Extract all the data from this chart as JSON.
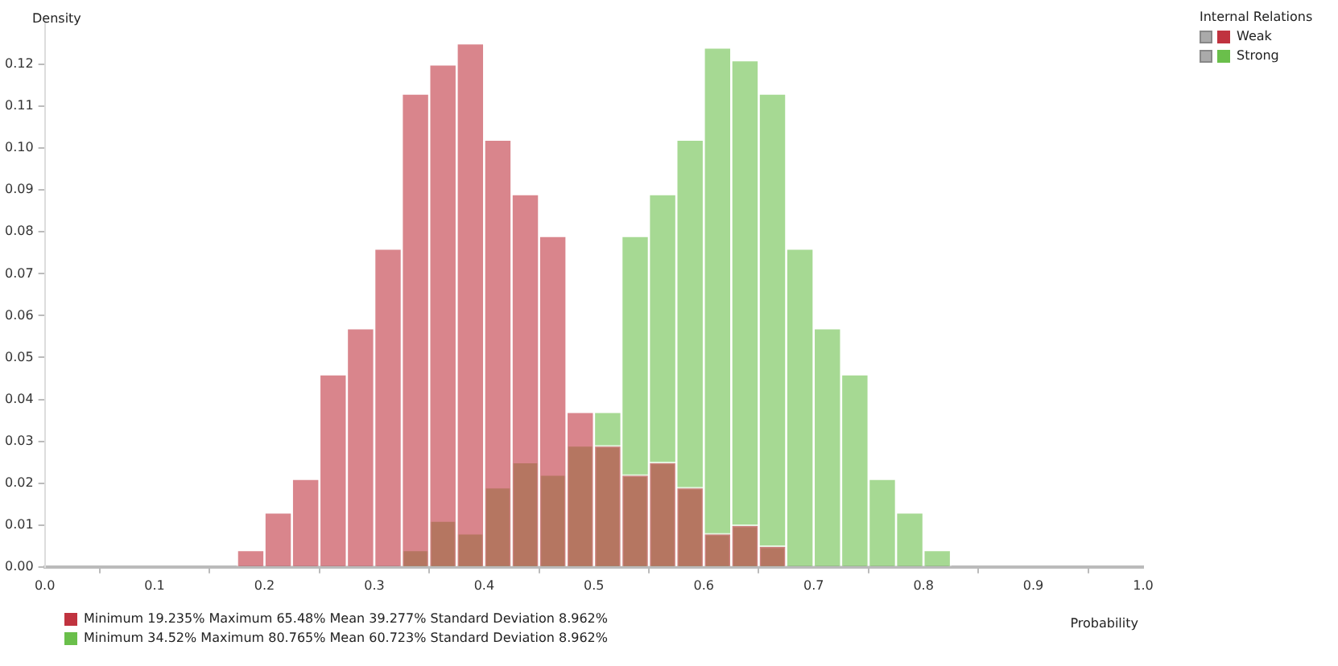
{
  "chart_data": {
    "type": "histogram",
    "xlabel": "Probability",
    "ylabel": "Density",
    "legend_title": "Internal Relations",
    "legend": "top right",
    "grid": false,
    "bins": [
      0.175,
      0.2,
      0.225,
      0.25,
      0.275,
      0.3,
      0.325,
      0.35,
      0.375,
      0.4,
      0.425,
      0.45,
      0.475,
      0.5,
      0.525,
      0.55,
      0.575,
      0.6,
      0.625,
      0.65,
      0.675,
      0.7,
      0.725,
      0.75,
      0.775,
      0.8,
      0.825
    ],
    "series": [
      {
        "name": "Weak",
        "color": "#c0333f",
        "values": [
          0.004,
          0.013,
          0.021,
          0.046,
          0.057,
          0.076,
          0.113,
          0.12,
          0.125,
          0.102,
          0.089,
          0.079,
          0.037,
          0.029,
          0.022,
          0.025,
          0.019,
          0.008,
          0.01,
          0.005,
          0,
          0,
          0,
          0,
          0,
          0
        ]
      },
      {
        "name": "Strong",
        "color": "#6abf4b",
        "values": [
          0,
          0,
          0,
          0,
          0,
          0,
          0.004,
          0.011,
          0.008,
          0.019,
          0.025,
          0.022,
          0.029,
          0.037,
          0.079,
          0.089,
          0.102,
          0.124,
          0.121,
          0.113,
          0.076,
          0.057,
          0.046,
          0.021,
          0.013,
          0.004
        ]
      }
    ],
    "xlim": [
      0,
      1
    ],
    "xticks": [
      {
        "value": 0,
        "label": "0.0"
      },
      0.1,
      0.2,
      0.3,
      0.4,
      0.5,
      0.6,
      0.7,
      0.8,
      0.9,
      {
        "value": 1,
        "label": "1.0"
      }
    ],
    "ylim": [
      0,
      0.13
    ],
    "yticks": [
      {
        "value": 0,
        "label": "0.00"
      },
      {
        "value": 0.01,
        "label": "0.01"
      },
      {
        "value": 0.02,
        "label": "0.02"
      },
      {
        "value": 0.03,
        "label": "0.03"
      },
      {
        "value": 0.04,
        "label": "0.04"
      },
      {
        "value": 0.05,
        "label": "0.05"
      },
      {
        "value": 0.06,
        "label": "0.06"
      },
      {
        "value": 0.07,
        "label": "0.07"
      },
      {
        "value": 0.08,
        "label": "0.08"
      },
      {
        "value": 0.09,
        "label": "0.09"
      },
      {
        "value": 0.1,
        "label": "0.10"
      },
      {
        "value": 0.11,
        "label": "0.11"
      },
      {
        "value": 0.12,
        "label": "0.12"
      }
    ],
    "annotations": [
      "Minimum 19.235% Maximum 65.48% Mean 39.277% Standard Deviation 8.962%",
      "Minimum 34.52% Maximum 80.765% Mean 60.723% Standard Deviation 8.962%"
    ]
  }
}
